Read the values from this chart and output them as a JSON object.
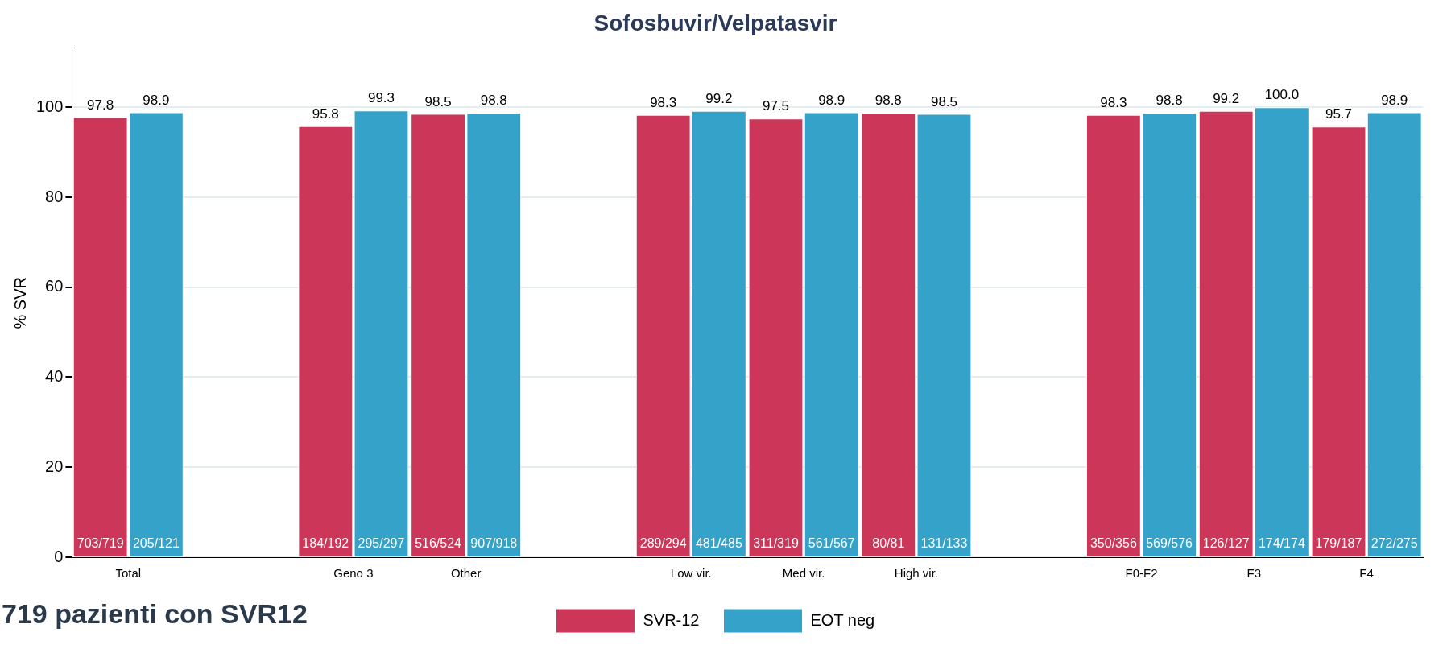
{
  "chart_data": {
    "type": "bar",
    "title": "Sofosbuvir/Velpatasvir",
    "ylabel": "% SVR",
    "categories": [
      "Total",
      null,
      "Geno 3",
      "Other",
      null,
      "Low vir.",
      "Med vir.",
      "High vir.",
      null,
      "F0-F2",
      "F3",
      "F4"
    ],
    "series": [
      {
        "name": "SVR-12",
        "color": "#cc3759",
        "values": [
          97.8,
          null,
          95.8,
          98.5,
          null,
          98.3,
          97.5,
          98.8,
          null,
          98.3,
          99.2,
          95.7
        ],
        "value_labels": [
          "97.8",
          null,
          "95.8",
          "98.5",
          null,
          "98.3",
          "97.5",
          "98.8",
          null,
          "98.3",
          "99.2",
          "95.7"
        ]
      },
      {
        "name": "EOT neg",
        "color": "#35a2c9",
        "values": [
          98.9,
          null,
          99.3,
          98.8,
          null,
          99.2,
          98.9,
          98.5,
          null,
          98.8,
          100.0,
          98.9
        ],
        "value_labels": [
          "98.9",
          null,
          "99.3",
          "98.8",
          null,
          "99.2",
          "98.9",
          "98.5",
          null,
          "98.8",
          "100.0",
          "98.9"
        ]
      }
    ],
    "ylim": [
      0,
      113
    ],
    "yticks": [
      0,
      20,
      40,
      60,
      80,
      100
    ],
    "grid": "y",
    "legend": "bottom",
    "annotations": [
      {
        "text": "703/719",
        "x": "Total",
        "y": 0
      },
      {
        "text": "205/121",
        "x": "Total",
        "y": 0
      },
      {
        "text": "184/192",
        "x": "Geno 3",
        "y": 0
      },
      {
        "text": "295/297",
        "x": "Geno 3",
        "y": 0
      },
      {
        "text": "516/524",
        "x": "Other",
        "y": 0
      },
      {
        "text": "907/918",
        "x": "Other",
        "y": 0
      },
      {
        "text": "289/294",
        "x": "Low vir.",
        "y": 0
      },
      {
        "text": "481/485",
        "x": "Low vir.",
        "y": 0
      },
      {
        "text": "311/319",
        "x": "Med vir.",
        "y": 0
      },
      {
        "text": "561/567",
        "x": "Med vir.",
        "y": 0
      },
      {
        "text": "80/81",
        "x": "High vir.",
        "y": 0
      },
      {
        "text": "131/133",
        "x": "High vir.",
        "y": 0
      },
      {
        "text": "350/356",
        "x": "F0-F2",
        "y": 0
      },
      {
        "text": "569/576",
        "x": "F0-F2",
        "y": 0
      },
      {
        "text": "126/127",
        "x": "F3",
        "y": 0
      },
      {
        "text": "174/174",
        "x": "F3",
        "y": 0
      },
      {
        "text": "179/187",
        "x": "F4",
        "y": 0
      },
      {
        "text": "272/275",
        "x": "F4",
        "y": 0
      },
      "719 pazienti con SVR12"
    ]
  }
}
